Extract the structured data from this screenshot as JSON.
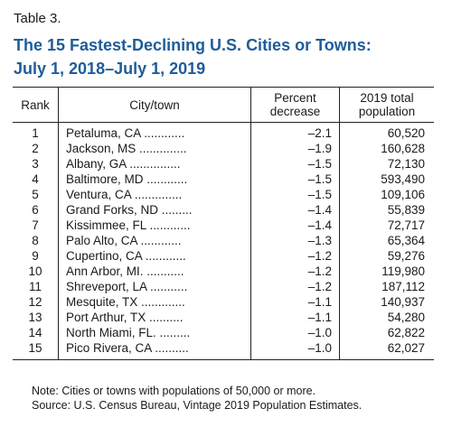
{
  "table_label": "Table 3.",
  "title_line1": "The 15 Fastest-Declining U.S. Cities or Towns:",
  "title_line2": "July 1, 2018–July 1, 2019",
  "headers": {
    "rank": "Rank",
    "city": "City/town",
    "pct_line1": "Percent",
    "pct_line2": "decrease",
    "pop_line1": "2019 total",
    "pop_line2": "population"
  },
  "rows": [
    {
      "rank": "1",
      "city": "Petaluma, CA ............",
      "pct": "–2.1",
      "pop": "60,520"
    },
    {
      "rank": "2",
      "city": "Jackson, MS ..............",
      "pct": "–1.9",
      "pop": "160,628"
    },
    {
      "rank": "3",
      "city": "Albany, GA ...............",
      "pct": "–1.5",
      "pop": "72,130"
    },
    {
      "rank": "4",
      "city": "Baltimore, MD ............",
      "pct": "–1.5",
      "pop": "593,490"
    },
    {
      "rank": "5",
      "city": "Ventura, CA ..............",
      "pct": "–1.5",
      "pop": "109,106"
    },
    {
      "rank": "6",
      "city": "Grand Forks, ND .........",
      "pct": "–1.4",
      "pop": "55,839"
    },
    {
      "rank": "7",
      "city": "Kissimmee, FL ............",
      "pct": "–1.4",
      "pop": "72,717"
    },
    {
      "rank": "8",
      "city": "Palo Alto, CA ............",
      "pct": "–1.3",
      "pop": "65,364"
    },
    {
      "rank": "9",
      "city": "Cupertino, CA ............",
      "pct": "–1.2",
      "pop": "59,276"
    },
    {
      "rank": "10",
      "city": "Ann Arbor, MI. ...........",
      "pct": "–1.2",
      "pop": "119,980"
    },
    {
      "rank": "11",
      "city": "Shreveport, LA ...........",
      "pct": "–1.2",
      "pop": "187,112"
    },
    {
      "rank": "12",
      "city": "Mesquite, TX .............",
      "pct": "–1.1",
      "pop": "140,937"
    },
    {
      "rank": "13",
      "city": "Port Arthur, TX ..........",
      "pct": "–1.1",
      "pop": "54,280"
    },
    {
      "rank": "14",
      "city": "North Miami, FL. .........",
      "pct": "–1.0",
      "pop": "62,822"
    },
    {
      "rank": "15",
      "city": "Pico Rivera, CA ..........",
      "pct": "–1.0",
      "pop": "62,027"
    }
  ],
  "note_line1": "Note: Cities or towns with populations of 50,000 or more.",
  "note_line2": "Source: U.S. Census Bureau, Vintage 2019 Population Estimates.",
  "colors": {
    "title": "#1f5c99",
    "text": "#1a1a1a",
    "rule": "#222222"
  }
}
